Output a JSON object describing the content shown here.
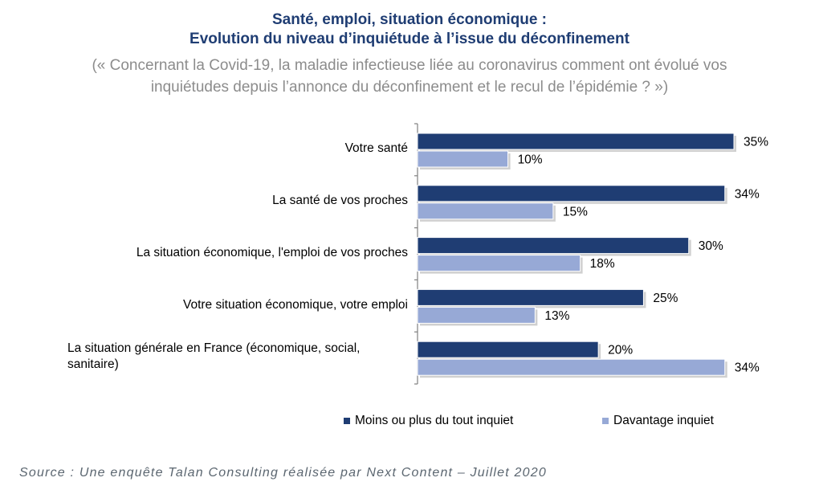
{
  "title_line1": "Santé, emploi, situation économique :",
  "title_line2": "Evolution du niveau d’inquiétude à l’issue du déconfinement",
  "question_line1": "(« Concernant la Covid-19, la maladie infectieuse liée au coronavirus comment ont évolué vos",
  "question_line2": "inquiétudes depuis l’annonce du déconfinement et le recul de l’épidémie ? »)",
  "source": "Source : Une enquête Talan Consulting réalisée par Next Content – Juillet 2020",
  "colors": {
    "series1": "#1f3d73",
    "series2": "#97a9d6"
  },
  "chart_data": {
    "type": "bar",
    "orientation": "horizontal",
    "categories": [
      "Votre santé",
      "La santé de vos proches",
      "La situation économique, l'emploi de vos proches",
      "Votre situation économique, votre emploi",
      "La situation générale en France (économique, social, sanitaire)"
    ],
    "category_lines": [
      [
        "Votre santé"
      ],
      [
        "La santé de vos proches"
      ],
      [
        "La situation économique, l'emploi de vos proches"
      ],
      [
        "Votre situation économique, votre emploi"
      ],
      [
        "La situation générale en France (économique, social,",
        "sanitaire)"
      ]
    ],
    "series": [
      {
        "name": "Moins ou plus du tout inquiet",
        "values": [
          35,
          34,
          30,
          25,
          20
        ]
      },
      {
        "name": "Davantage inquiet",
        "values": [
          10,
          15,
          18,
          13,
          34
        ]
      }
    ],
    "value_suffix": "%",
    "xlim": [
      0,
      40
    ],
    "legend_position": "bottom",
    "grid": false
  }
}
